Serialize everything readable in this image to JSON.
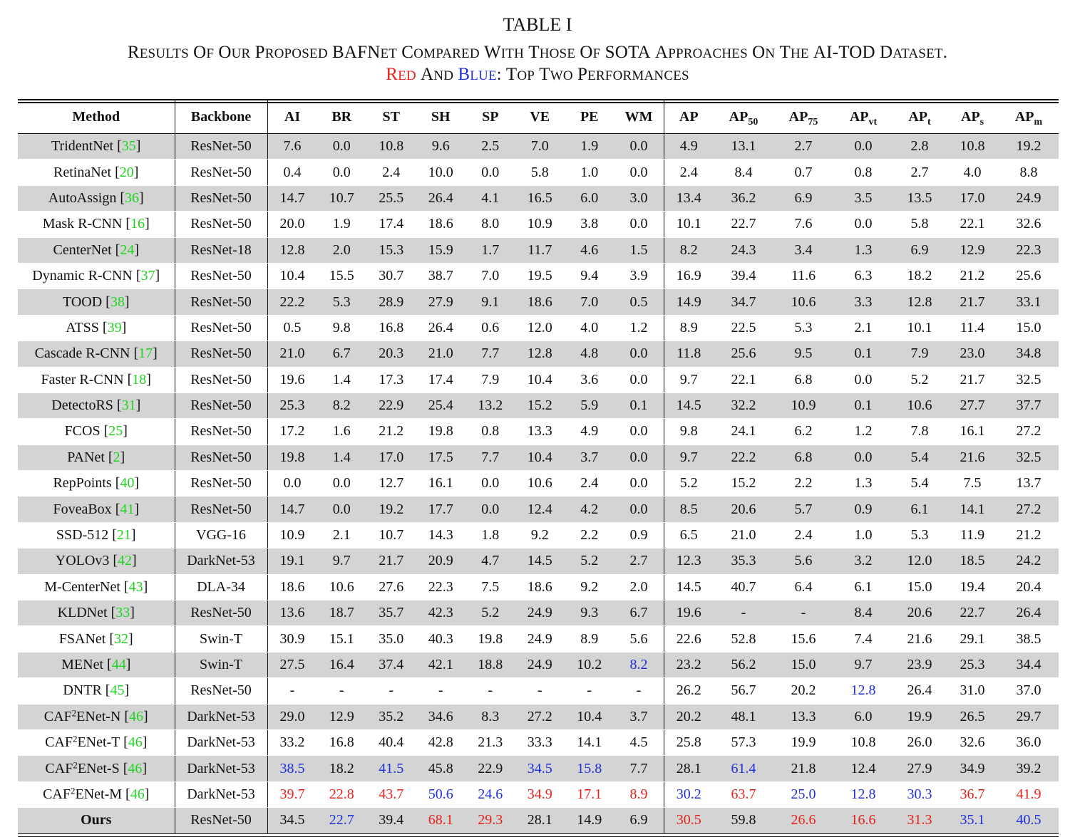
{
  "caption": {
    "number": "TABLE I",
    "title_line1": "RESULTS OF OUR PROPOSED BAFNET COMPARED WITH THOSE OF SOTA APPROACHES ON THE AI-TOD DATASET.",
    "title_line2_red": "RED",
    "title_line2_and": "AND",
    "title_line2_blue": "BLUE",
    "title_line2_rest": ": TOP TWO PERFORMANCES"
  },
  "colors": {
    "first": "#e8211c",
    "second": "#1f2fdc",
    "citation": "#1ed41e"
  },
  "headers": [
    "Method",
    "Backbone",
    "AI",
    "BR",
    "ST",
    "SH",
    "SP",
    "VE",
    "PE",
    "WM",
    "AP",
    "AP50",
    "AP75",
    "APvt",
    "APt",
    "APs",
    "APm"
  ],
  "rows": [
    {
      "name": "TridentNet",
      "ref": "35",
      "backbone": "ResNet-50",
      "values": [
        "7.6",
        "0.0",
        "10.8",
        "9.6",
        "2.5",
        "7.0",
        "1.9",
        "0.0",
        "4.9",
        "13.1",
        "2.7",
        "0.0",
        "2.8",
        "10.8",
        "19.2"
      ],
      "colors": {}
    },
    {
      "name": "RetinaNet",
      "ref": "20",
      "backbone": "ResNet-50",
      "values": [
        "0.4",
        "0.0",
        "2.4",
        "10.0",
        "0.0",
        "5.8",
        "1.0",
        "0.0",
        "2.4",
        "8.4",
        "0.7",
        "0.8",
        "2.7",
        "4.0",
        "8.8"
      ],
      "colors": {}
    },
    {
      "name": "AutoAssign",
      "ref": "36",
      "backbone": "ResNet-50",
      "values": [
        "14.7",
        "10.7",
        "25.5",
        "26.4",
        "4.1",
        "16.5",
        "6.0",
        "3.0",
        "13.4",
        "36.2",
        "6.9",
        "3.5",
        "13.5",
        "17.0",
        "24.9"
      ],
      "colors": {}
    },
    {
      "name": "Mask R-CNN",
      "ref": "16",
      "backbone": "ResNet-50",
      "values": [
        "20.0",
        "1.9",
        "17.4",
        "18.6",
        "8.0",
        "10.9",
        "3.8",
        "0.0",
        "10.1",
        "22.7",
        "7.6",
        "0.0",
        "5.8",
        "22.1",
        "32.6"
      ],
      "colors": {}
    },
    {
      "name": "CenterNet",
      "ref": "24",
      "backbone": "ResNet-18",
      "values": [
        "12.8",
        "2.0",
        "15.3",
        "15.9",
        "1.7",
        "11.7",
        "4.6",
        "1.5",
        "8.2",
        "24.3",
        "3.4",
        "1.3",
        "6.9",
        "12.9",
        "22.3"
      ],
      "colors": {}
    },
    {
      "name": "Dynamic R-CNN",
      "ref": "37",
      "backbone": "ResNet-50",
      "values": [
        "10.4",
        "15.5",
        "30.7",
        "38.7",
        "7.0",
        "19.5",
        "9.4",
        "3.9",
        "16.9",
        "39.4",
        "11.6",
        "6.3",
        "18.2",
        "21.2",
        "25.6"
      ],
      "colors": {}
    },
    {
      "name": "TOOD",
      "ref": "38",
      "backbone": "ResNet-50",
      "values": [
        "22.2",
        "5.3",
        "28.9",
        "27.9",
        "9.1",
        "18.6",
        "7.0",
        "0.5",
        "14.9",
        "34.7",
        "10.6",
        "3.3",
        "12.8",
        "21.7",
        "33.1"
      ],
      "colors": {}
    },
    {
      "name": "ATSS",
      "ref": "39",
      "backbone": "ResNet-50",
      "values": [
        "0.5",
        "9.8",
        "16.8",
        "26.4",
        "0.6",
        "12.0",
        "4.0",
        "1.2",
        "8.9",
        "22.5",
        "5.3",
        "2.1",
        "10.1",
        "11.4",
        "15.0"
      ],
      "colors": {}
    },
    {
      "name": "Cascade R-CNN",
      "ref": "17",
      "backbone": "ResNet-50",
      "values": [
        "21.0",
        "6.7",
        "20.3",
        "21.0",
        "7.7",
        "12.8",
        "4.8",
        "0.0",
        "11.8",
        "25.6",
        "9.5",
        "0.1",
        "7.9",
        "23.0",
        "34.8"
      ],
      "colors": {}
    },
    {
      "name": "Faster R-CNN",
      "ref": "18",
      "backbone": "ResNet-50",
      "values": [
        "19.6",
        "1.4",
        "17.3",
        "17.4",
        "7.9",
        "10.4",
        "3.6",
        "0.0",
        "9.7",
        "22.1",
        "6.8",
        "0.0",
        "5.2",
        "21.7",
        "32.5"
      ],
      "colors": {}
    },
    {
      "name": "DetectoRS",
      "ref": "31",
      "backbone": "ResNet-50",
      "values": [
        "25.3",
        "8.2",
        "22.9",
        "25.4",
        "13.2",
        "15.2",
        "5.9",
        "0.1",
        "14.5",
        "32.2",
        "10.9",
        "0.1",
        "10.6",
        "27.7",
        "37.7"
      ],
      "colors": {}
    },
    {
      "name": "FCOS",
      "ref": "25",
      "backbone": "ResNet-50",
      "values": [
        "17.2",
        "1.6",
        "21.2",
        "19.8",
        "0.8",
        "13.3",
        "4.9",
        "0.0",
        "9.8",
        "24.1",
        "6.2",
        "1.2",
        "7.8",
        "16.1",
        "27.2"
      ],
      "colors": {}
    },
    {
      "name": "PANet",
      "ref": "2",
      "backbone": "ResNet-50",
      "values": [
        "19.8",
        "1.4",
        "17.0",
        "17.5",
        "7.7",
        "10.4",
        "3.7",
        "0.0",
        "9.7",
        "22.2",
        "6.8",
        "0.0",
        "5.4",
        "21.6",
        "32.5"
      ],
      "colors": {}
    },
    {
      "name": "RepPoints",
      "ref": "40",
      "backbone": "ResNet-50",
      "values": [
        "0.0",
        "0.0",
        "12.7",
        "16.1",
        "0.0",
        "10.6",
        "2.4",
        "0.0",
        "5.2",
        "15.2",
        "2.2",
        "1.3",
        "5.4",
        "7.5",
        "13.7"
      ],
      "colors": {}
    },
    {
      "name": "FoveaBox",
      "ref": "41",
      "backbone": "ResNet-50",
      "values": [
        "14.7",
        "0.0",
        "19.2",
        "17.7",
        "0.0",
        "12.4",
        "4.2",
        "0.0",
        "8.5",
        "20.6",
        "5.7",
        "0.9",
        "6.1",
        "14.1",
        "27.2"
      ],
      "colors": {}
    },
    {
      "name": "SSD-512",
      "ref": "21",
      "backbone": "VGG-16",
      "values": [
        "10.9",
        "2.1",
        "10.7",
        "14.3",
        "1.8",
        "9.2",
        "2.2",
        "0.9",
        "6.5",
        "21.0",
        "2.4",
        "1.0",
        "5.3",
        "11.9",
        "21.2"
      ],
      "colors": {}
    },
    {
      "name": "YOLOv3",
      "ref": "42",
      "backbone": "DarkNet-53",
      "values": [
        "19.1",
        "9.7",
        "21.7",
        "20.9",
        "4.7",
        "14.5",
        "5.2",
        "2.7",
        "12.3",
        "35.3",
        "5.6",
        "3.2",
        "12.0",
        "18.5",
        "24.2"
      ],
      "colors": {}
    },
    {
      "name": "M-CenterNet",
      "ref": "43",
      "backbone": "DLA-34",
      "values": [
        "18.6",
        "10.6",
        "27.6",
        "22.3",
        "7.5",
        "18.6",
        "9.2",
        "2.0",
        "14.5",
        "40.7",
        "6.4",
        "6.1",
        "15.0",
        "19.4",
        "20.4"
      ],
      "colors": {}
    },
    {
      "name": "KLDNet",
      "ref": "33",
      "backbone": "ResNet-50",
      "values": [
        "13.6",
        "18.7",
        "35.7",
        "42.3",
        "5.2",
        "24.9",
        "9.3",
        "6.7",
        "19.6",
        "-",
        "-",
        "8.4",
        "20.6",
        "22.7",
        "26.4"
      ],
      "colors": {}
    },
    {
      "name": "FSANet",
      "ref": "32",
      "backbone": "Swin-T",
      "values": [
        "30.9",
        "15.1",
        "35.0",
        "40.3",
        "19.8",
        "24.9",
        "8.9",
        "5.6",
        "22.6",
        "52.8",
        "15.6",
        "7.4",
        "21.6",
        "29.1",
        "38.5"
      ],
      "colors": {}
    },
    {
      "name": "MENet",
      "ref": "44",
      "backbone": "Swin-T",
      "values": [
        "27.5",
        "16.4",
        "37.4",
        "42.1",
        "18.8",
        "24.9",
        "10.2",
        "8.2",
        "23.2",
        "56.2",
        "15.0",
        "9.7",
        "23.9",
        "25.3",
        "34.4"
      ],
      "colors": {
        "7": "blue"
      }
    },
    {
      "name": "DNTR",
      "ref": "45",
      "backbone": "ResNet-50",
      "values": [
        "-",
        "-",
        "-",
        "-",
        "-",
        "-",
        "-",
        "-",
        "26.2",
        "56.7",
        "20.2",
        "12.8",
        "26.4",
        "31.0",
        "37.0"
      ],
      "colors": {
        "11": "blue"
      }
    },
    {
      "name": "CAF",
      "sup": "2",
      "name_suffix": "ENet-N",
      "ref": "46",
      "backbone": "DarkNet-53",
      "values": [
        "29.0",
        "12.9",
        "35.2",
        "34.6",
        "8.3",
        "27.2",
        "10.4",
        "3.7",
        "20.2",
        "48.1",
        "13.3",
        "6.0",
        "19.9",
        "26.5",
        "29.7"
      ],
      "colors": {}
    },
    {
      "name": "CAF",
      "sup": "2",
      "name_suffix": "ENet-T",
      "ref": "46",
      "backbone": "DarkNet-53",
      "values": [
        "33.2",
        "16.8",
        "40.4",
        "42.8",
        "21.3",
        "33.3",
        "14.1",
        "4.5",
        "25.8",
        "57.3",
        "19.9",
        "10.8",
        "26.0",
        "32.6",
        "36.0"
      ],
      "colors": {}
    },
    {
      "name": "CAF",
      "sup": "2",
      "name_suffix": "ENet-S",
      "ref": "46",
      "backbone": "DarkNet-53",
      "values": [
        "38.5",
        "18.2",
        "41.5",
        "45.8",
        "22.9",
        "34.5",
        "15.8",
        "7.7",
        "28.1",
        "61.4",
        "21.8",
        "12.4",
        "27.9",
        "34.9",
        "39.2"
      ],
      "colors": {
        "0": "blue",
        "2": "blue",
        "5": "blue",
        "6": "blue",
        "9": "blue"
      }
    },
    {
      "name": "CAF",
      "sup": "2",
      "name_suffix": "ENet-M",
      "ref": "46",
      "backbone": "DarkNet-53",
      "values": [
        "39.7",
        "22.8",
        "43.7",
        "50.6",
        "24.6",
        "34.9",
        "17.1",
        "8.9",
        "30.2",
        "63.7",
        "25.0",
        "12.8",
        "30.3",
        "36.7",
        "41.9"
      ],
      "colors": {
        "0": "red",
        "1": "red",
        "2": "red",
        "3": "blue",
        "4": "blue",
        "5": "red",
        "6": "red",
        "7": "red",
        "8": "blue",
        "9": "red",
        "10": "blue",
        "11": "blue",
        "12": "blue",
        "13": "red",
        "14": "red"
      }
    },
    {
      "name": "Ours",
      "ref": "",
      "backbone": "ResNet-50",
      "values": [
        "34.5",
        "22.7",
        "39.4",
        "68.1",
        "29.3",
        "28.1",
        "14.9",
        "6.9",
        "30.5",
        "59.8",
        "26.6",
        "16.6",
        "31.3",
        "35.1",
        "40.5"
      ],
      "colors": {
        "1": "blue",
        "3": "red",
        "4": "red",
        "8": "red",
        "10": "red",
        "11": "red",
        "12": "red",
        "13": "blue",
        "14": "blue"
      },
      "bold_name": true
    }
  ]
}
